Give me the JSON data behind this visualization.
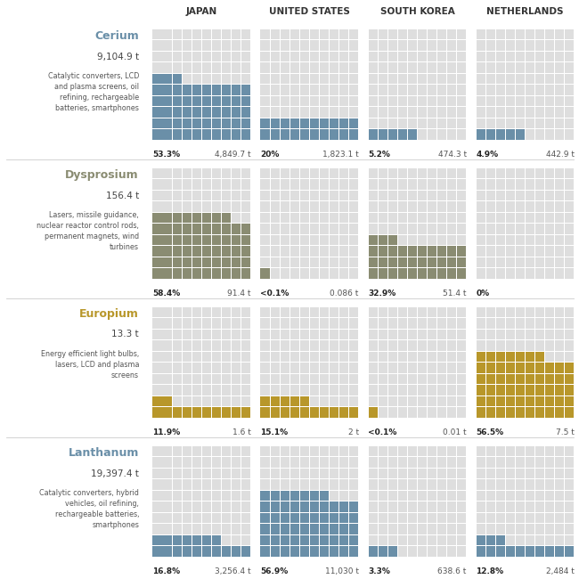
{
  "elements": [
    "Cerium",
    "Dysprosium",
    "Europium",
    "Lanthanum"
  ],
  "element_colors": [
    "#6a8fa8",
    "#8a8c72",
    "#b8972a",
    "#6a8fa8"
  ],
  "element_totals": [
    "9,104.9 t",
    "156.4 t",
    "13.3 t",
    "19,397.4 t"
  ],
  "element_descriptions": [
    "Catalytic converters, LCD\nand plasma screens, oil\nrefining, rechargeable\nbatteries, smartphones",
    "Lasers, missile guidance,\nnuclear reactor control rods,\npermanent magnets, wind\nturbines",
    "Energy efficient light bulbs,\nlasers, LCD and plasma\nscreens",
    "Catalytic converters, hybrid\nvehicles, oil refining,\nrechargeable batteries,\nsmartphones"
  ],
  "countries": [
    "JAPAN",
    "UNITED STATES",
    "SOUTH KOREA",
    "NETHERLANDS"
  ],
  "data": [
    [
      {
        "pct": "53.3%",
        "val": "4,849.7 t",
        "squares": 53
      },
      {
        "pct": "20%",
        "val": "1,823.1 t",
        "squares": 20
      },
      {
        "pct": "5.2%",
        "val": "474.3 t",
        "squares": 5
      },
      {
        "pct": "4.9%",
        "val": "442.9 t",
        "squares": 5
      }
    ],
    [
      {
        "pct": "58.4%",
        "val": "91.4 t",
        "squares": 58
      },
      {
        "pct": "<0.1%",
        "val": "0.086 t",
        "squares": 1
      },
      {
        "pct": "32.9%",
        "val": "51.4 t",
        "squares": 33
      },
      {
        "pct": "0%",
        "val": "",
        "squares": 0
      }
    ],
    [
      {
        "pct": "11.9%",
        "val": "1.6 t",
        "squares": 12
      },
      {
        "pct": "15.1%",
        "val": "2 t",
        "squares": 15
      },
      {
        "pct": "<0.1%",
        "val": "0.01 t",
        "squares": 1
      },
      {
        "pct": "56.5%",
        "val": "7.5 t",
        "squares": 57
      }
    ],
    [
      {
        "pct": "16.8%",
        "val": "3,256.4 t",
        "squares": 17
      },
      {
        "pct": "56.9%",
        "val": "11,030 t",
        "squares": 57
      },
      {
        "pct": "3.3%",
        "val": "638.6 t",
        "squares": 3
      },
      {
        "pct": "12.8%",
        "val": "2,484 t",
        "squares": 13
      }
    ]
  ],
  "empty_color": "#dedede",
  "grid_cols": 10,
  "grid_rows": 10,
  "fig_bg": "#ffffff"
}
